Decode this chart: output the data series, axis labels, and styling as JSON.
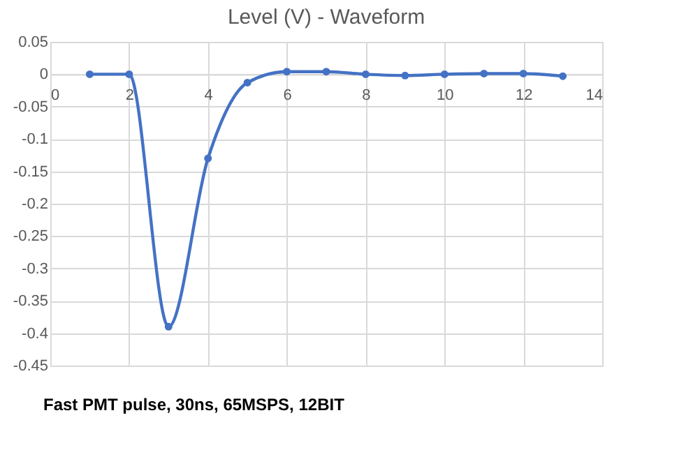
{
  "chart_data": {
    "type": "line",
    "title": "Level (V) - Waveform",
    "x": [
      1,
      2,
      3,
      4,
      5,
      6,
      7,
      8,
      9,
      10,
      11,
      12,
      13
    ],
    "series": [
      {
        "color": "#4472c4",
        "values": [
          0,
          0,
          -0.39,
          -0.13,
          -0.013,
          0.004,
          0.004,
          0,
          -0.002,
          0,
          0.001,
          0.001,
          -0.003
        ]
      }
    ],
    "xlim": [
      0,
      14
    ],
    "xticks": [
      0,
      2,
      4,
      6,
      8,
      10,
      12,
      14
    ],
    "ylim": [
      -0.45,
      0.05
    ],
    "yticks": [
      0.05,
      0,
      -0.05,
      -0.1,
      -0.15,
      -0.2,
      -0.25,
      -0.3,
      -0.35,
      -0.4,
      -0.45
    ],
    "grid": true,
    "marker": "circle",
    "line_style": "solid",
    "annotations": [
      "Fast PMT pulse, 30ns, 65MSPS, 12BIT"
    ]
  }
}
